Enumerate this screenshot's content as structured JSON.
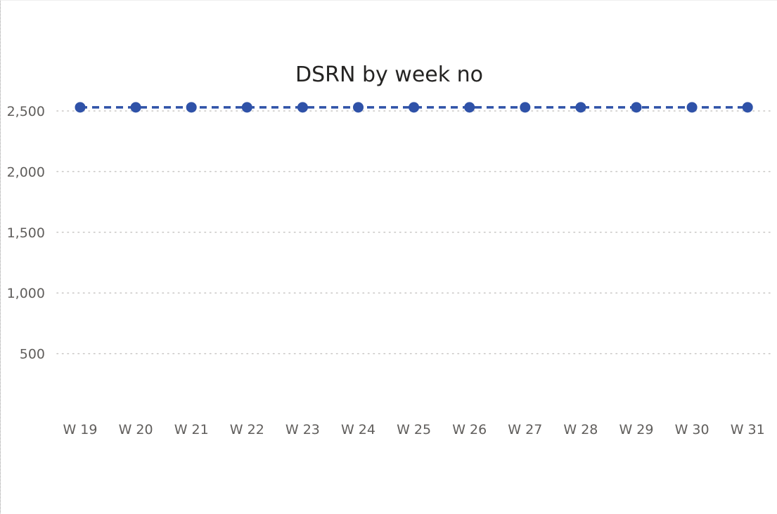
{
  "chart_data": {
    "type": "line",
    "title": "DSRN by week no",
    "xlabel": "",
    "ylabel": "",
    "categories": [
      "W 19",
      "W 20",
      "W 21",
      "W 22",
      "W 23",
      "W 24",
      "W 25",
      "W 26",
      "W 27",
      "W 28",
      "W 29",
      "W 30",
      "W 31"
    ],
    "series": [
      {
        "values": [
          2530,
          2530,
          2530,
          2530,
          2530,
          2530,
          2530,
          2530,
          2530,
          2530,
          2530,
          2530,
          2530
        ],
        "color": "#2f52a8",
        "line_style": "dashed",
        "markers": true
      }
    ],
    "yticks": [
      500,
      1000,
      1500,
      2000,
      2500
    ],
    "ytick_labels": [
      "500",
      "1,000",
      "1,500",
      "2,000",
      "2,500"
    ],
    "ylim": [
      0,
      2500
    ],
    "grid": "horizontal-dotted",
    "legend": "none",
    "gridline_color": "#c8c6c4"
  }
}
